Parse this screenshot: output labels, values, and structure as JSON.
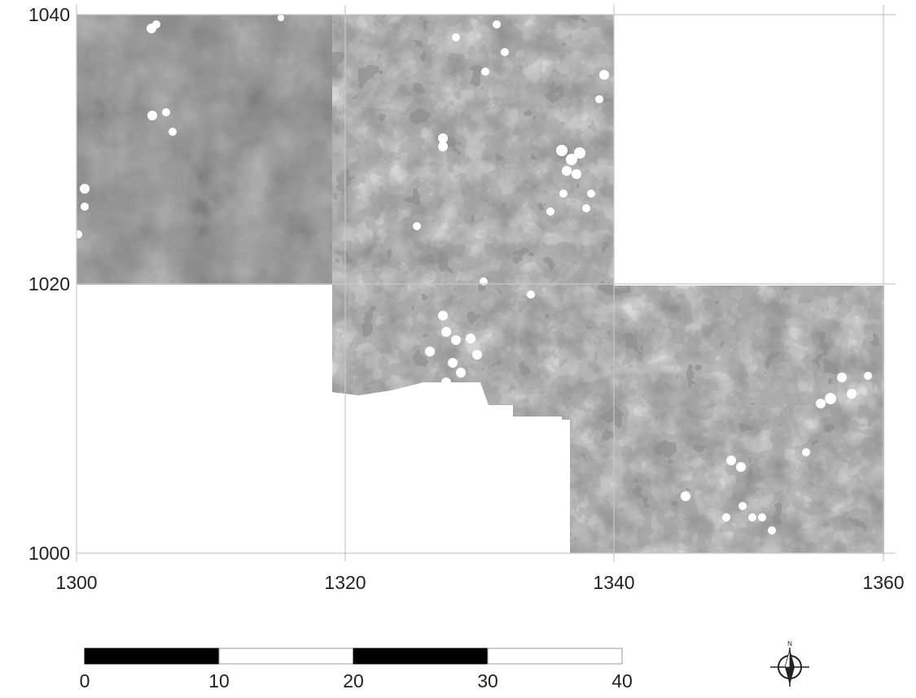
{
  "map": {
    "type": "geophysical-survey-grid",
    "x_axis": {
      "ticks": [
        "1300",
        "1320",
        "1340",
        "1360"
      ],
      "range": [
        1300,
        1360
      ]
    },
    "y_axis": {
      "ticks": [
        "1040",
        "1020",
        "1000"
      ],
      "range": [
        1000,
        1040
      ]
    },
    "grid": true,
    "surveyed_grid_squares": [
      {
        "x0": 1300,
        "x1": 1320,
        "y0": 1020,
        "y1": 1040
      },
      {
        "x0": 1320,
        "x1": 1340,
        "y0": 1020,
        "y1": 1040
      },
      {
        "x0": 1320,
        "x1": 1340,
        "y0": 1000,
        "y1": 1020
      },
      {
        "x0": 1340,
        "x1": 1360,
        "y0": 1000,
        "y1": 1020
      }
    ],
    "colors": {
      "raster_dark": "#000000",
      "raster_mid": "#8c8c8c",
      "raster_light": "#e8e8e8",
      "grid": "#c8c8c8",
      "background": "#ffffff"
    }
  },
  "scale_bar": {
    "labels": [
      "0",
      "10",
      "20",
      "30",
      "40"
    ],
    "segments": 4,
    "fill_pattern": [
      "black",
      "white",
      "black",
      "white"
    ]
  },
  "north_arrow": {
    "label": "N",
    "icon": "north-arrow-icon"
  }
}
